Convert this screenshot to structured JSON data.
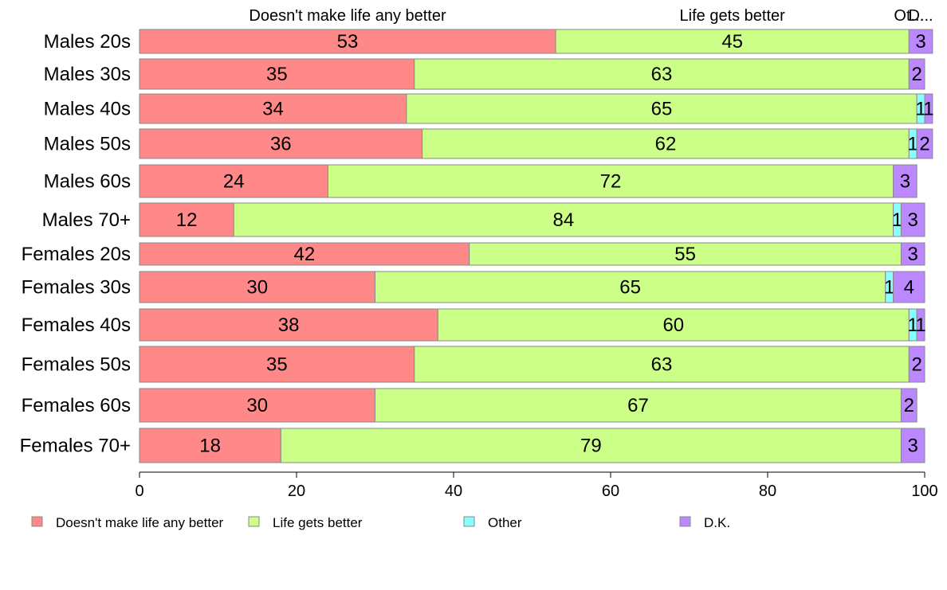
{
  "chart_data": {
    "type": "bar",
    "orientation": "horizontal",
    "stacked": true,
    "categories": [
      "Males 20s",
      "Males 30s",
      "Males 40s",
      "Males 50s",
      "Males 60s",
      "Males 70+",
      "Females 20s",
      "Females 30s",
      "Females 40s",
      "Females 50s",
      "Females 60s",
      "Females 70+"
    ],
    "series": [
      {
        "name": "Doesn't make life any better",
        "color": "#ff8888",
        "values": [
          53,
          35,
          34,
          36,
          24,
          12,
          42,
          30,
          38,
          35,
          30,
          18
        ]
      },
      {
        "name": "Life gets better",
        "color": "#ccff88",
        "values": [
          45,
          63,
          65,
          62,
          72,
          84,
          55,
          65,
          60,
          63,
          67,
          79
        ]
      },
      {
        "name": "Other",
        "color": "#88ffff",
        "values": [
          0,
          0,
          1,
          1,
          0,
          1,
          0,
          1,
          1,
          0,
          0,
          0
        ]
      },
      {
        "name": "D.K.",
        "color": "#bb88ff",
        "values": [
          3,
          2,
          1,
          2,
          3,
          3,
          3,
          4,
          1,
          2,
          2,
          3
        ]
      }
    ],
    "top_labels": [
      "Doesn't make life any better",
      "Life gets better",
      "Ot...",
      "D..."
    ],
    "xlim": [
      0,
      100
    ],
    "xticks": [
      "0",
      "20",
      "40",
      "60",
      "80",
      "100"
    ],
    "grid": false,
    "legend_position": "bottom"
  }
}
